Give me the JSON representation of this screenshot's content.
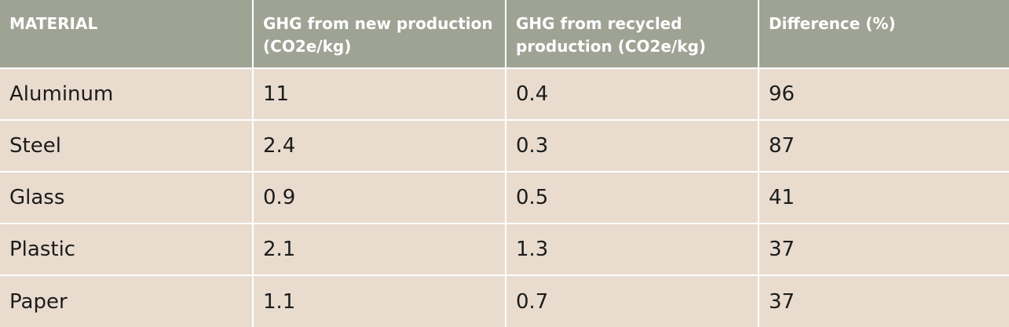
{
  "table": {
    "header": [
      "MATERIAL",
      "GHG from new production (CO2e/kg)",
      "GHG from recycled production (CO2e/kg)",
      "Difference (%)"
    ],
    "rows": [
      [
        "Aluminum",
        11,
        0.4,
        96
      ],
      [
        "Steel",
        2.4,
        0.3,
        87
      ],
      [
        "Glass",
        0.9,
        0.5,
        41
      ],
      [
        "Plastic",
        2.1,
        1.3,
        37
      ],
      [
        "Paper",
        1.1,
        0.7,
        37
      ]
    ]
  }
}
